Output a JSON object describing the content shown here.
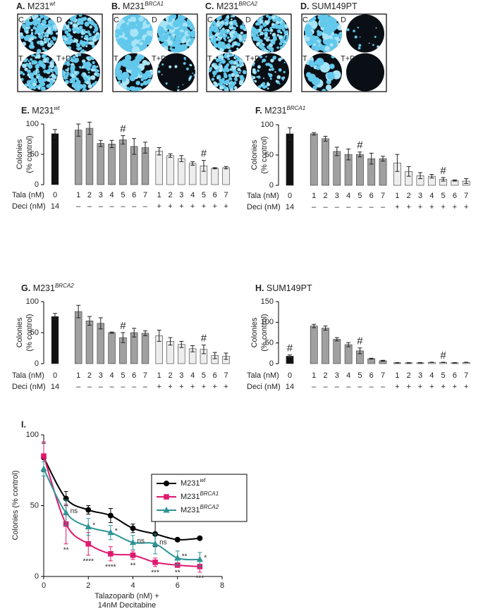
{
  "plates": [
    {
      "letter": "A.",
      "name": "M231",
      "sup": "wt",
      "quadrants": [
        "C",
        "D",
        "T",
        "T+D"
      ]
    },
    {
      "letter": "B.",
      "name": "M231",
      "sup": "BRCA1",
      "quadrants": [
        "C",
        "D",
        "T",
        "T+D"
      ]
    },
    {
      "letter": "C.",
      "name": "M231",
      "sup": "BRCA2",
      "quadrants": [
        "C",
        "D",
        "T",
        "T+D"
      ]
    },
    {
      "letter": "D.",
      "name": "SUM149PT",
      "quadrants": [
        "C",
        "D",
        "T",
        "T+D"
      ]
    }
  ],
  "chart_data": [
    {
      "type": "bar",
      "letter": "E.",
      "title": "M231",
      "title_sup": "wt",
      "ylabel": [
        "Colonies",
        "(% control)"
      ],
      "ylim": [
        0,
        100
      ],
      "yticks": [
        0,
        50,
        100
      ],
      "row_labels": [
        "Tala (nM)",
        "Deci (nM)"
      ],
      "categories": [
        "0",
        "1",
        "2",
        "3",
        "4",
        "5",
        "6",
        "7",
        "1",
        "2",
        "3",
        "4",
        "5",
        "6",
        "7"
      ],
      "deci": [
        "14",
        "–",
        "–",
        "–",
        "–",
        "–",
        "–",
        "–",
        "+",
        "+",
        "+",
        "+",
        "+",
        "+",
        "+"
      ],
      "colors": [
        "#111111",
        "#a0a0a0",
        "#a0a0a0",
        "#a0a0a0",
        "#a0a0a0",
        "#a0a0a0",
        "#a0a0a0",
        "#a0a0a0",
        "#ededed",
        "#ededed",
        "#ededed",
        "#ededed",
        "#ededed",
        "#ededed",
        "#ededed"
      ],
      "values": [
        84,
        90,
        93,
        68,
        67,
        74,
        63,
        61,
        55,
        48,
        43,
        35,
        31,
        27,
        28
      ],
      "errors": [
        7,
        10,
        10,
        5,
        6,
        7,
        13,
        9,
        6,
        3,
        5,
        3,
        9,
        1,
        2
      ],
      "annotations": [
        null,
        null,
        null,
        null,
        null,
        "#",
        null,
        null,
        null,
        null,
        null,
        null,
        "#",
        null,
        null
      ]
    },
    {
      "type": "bar",
      "letter": "F.",
      "title": "M231",
      "title_sup": "BRCA1",
      "ylabel": [
        "Colonies",
        "(% control)"
      ],
      "ylim": [
        0,
        100
      ],
      "yticks": [
        0,
        50,
        100
      ],
      "row_labels": [
        "Tala (nM)",
        "Deci (nM)"
      ],
      "categories": [
        "0",
        "1",
        "2",
        "3",
        "4",
        "5",
        "6",
        "7",
        "1",
        "2",
        "3",
        "4",
        "5",
        "6",
        "7"
      ],
      "deci": [
        "14",
        "–",
        "–",
        "–",
        "–",
        "–",
        "–",
        "–",
        "+",
        "+",
        "+",
        "+",
        "+",
        "+",
        "+"
      ],
      "colors": [
        "#111111",
        "#a0a0a0",
        "#a0a0a0",
        "#a0a0a0",
        "#a0a0a0",
        "#a0a0a0",
        "#a0a0a0",
        "#a0a0a0",
        "#ededed",
        "#ededed",
        "#ededed",
        "#ededed",
        "#ededed",
        "#ededed",
        "#ededed"
      ],
      "values": [
        85,
        85,
        77,
        56,
        51,
        51,
        44,
        44,
        37,
        23,
        16,
        15,
        10,
        8,
        7
      ],
      "errors": [
        10,
        2,
        4,
        7,
        9,
        4,
        9,
        4,
        14,
        8,
        5,
        3,
        3,
        1,
        4
      ],
      "annotations": [
        null,
        null,
        null,
        null,
        null,
        "#",
        null,
        null,
        null,
        null,
        null,
        null,
        "#",
        null,
        null
      ]
    },
    {
      "type": "bar",
      "letter": "G.",
      "title": "M231",
      "title_sup": "BRCA2",
      "ylabel": [
        "Colonies",
        "(% control)"
      ],
      "ylim": [
        0,
        100
      ],
      "yticks": [
        0,
        50,
        100
      ],
      "row_labels": [
        "Tala (nM)",
        "Deci (nM)"
      ],
      "categories": [
        "0",
        "1",
        "2",
        "3",
        "4",
        "5",
        "6",
        "7",
        "1",
        "2",
        "3",
        "4",
        "5",
        "6",
        "7"
      ],
      "deci": [
        "14",
        "–",
        "–",
        "–",
        "–",
        "–",
        "–",
        "–",
        "+",
        "+",
        "+",
        "+",
        "+",
        "+",
        "+"
      ],
      "colors": [
        "#111111",
        "#a0a0a0",
        "#a0a0a0",
        "#a0a0a0",
        "#a0a0a0",
        "#a0a0a0",
        "#a0a0a0",
        "#a0a0a0",
        "#ededed",
        "#ededed",
        "#ededed",
        "#ededed",
        "#ededed",
        "#ededed",
        "#ededed"
      ],
      "values": [
        76,
        84,
        69,
        65,
        50,
        42,
        50,
        49,
        45,
        36,
        31,
        24,
        23,
        13,
        12
      ],
      "errors": [
        5,
        10,
        7,
        9,
        1,
        8,
        7,
        4,
        9,
        6,
        5,
        5,
        7,
        5,
        5
      ],
      "annotations": [
        null,
        null,
        null,
        null,
        null,
        "#",
        null,
        null,
        null,
        null,
        null,
        null,
        "#",
        null,
        null
      ]
    },
    {
      "type": "bar",
      "letter": "H.",
      "title": "SUM149PT",
      "ylabel": [
        "Colonies",
        "(% control)"
      ],
      "ylim": [
        0,
        150
      ],
      "yticks": [
        0,
        50,
        100,
        150
      ],
      "row_labels": [
        "Tala (nM)",
        "Deci (nM)"
      ],
      "categories": [
        "0",
        "1",
        "2",
        "3",
        "4",
        "5",
        "6",
        "7",
        "1",
        "2",
        "3",
        "4",
        "5",
        "6",
        "7"
      ],
      "deci": [
        "14",
        "–",
        "–",
        "–",
        "–",
        "–",
        "–",
        "–",
        "+",
        "+",
        "+",
        "+",
        "+",
        "+",
        "+"
      ],
      "colors": [
        "#111111",
        "#a0a0a0",
        "#a0a0a0",
        "#a0a0a0",
        "#a0a0a0",
        "#a0a0a0",
        "#a0a0a0",
        "#a0a0a0",
        "#ededed",
        "#ededed",
        "#ededed",
        "#ededed",
        "#ededed",
        "#ededed",
        "#ededed"
      ],
      "values": [
        18,
        91,
        86,
        59,
        46,
        31,
        12,
        7,
        2,
        2,
        2,
        3,
        3,
        2,
        3
      ],
      "errors": [
        3,
        4,
        5,
        4,
        5,
        7,
        1,
        1,
        0.5,
        0.5,
        0.5,
        0.5,
        0.5,
        0.5,
        0.5
      ],
      "annotations": [
        "#",
        null,
        null,
        null,
        null,
        "#",
        null,
        null,
        null,
        null,
        null,
        null,
        "#",
        null,
        null
      ]
    },
    {
      "type": "line",
      "letter": "I.",
      "ylabel": "Colonies (% control)",
      "xlabel": [
        "Talazoparib (nM) +",
        "14nM Decitabine"
      ],
      "x": [
        0,
        1,
        2,
        3,
        4,
        5,
        6,
        7
      ],
      "xlim": [
        0,
        8
      ],
      "xticks": [
        0,
        2,
        4,
        6,
        8
      ],
      "ylim": [
        0,
        100
      ],
      "yticks": [
        0,
        50,
        100
      ],
      "series": [
        {
          "name": "M231",
          "sup": "wt",
          "color": "#000000",
          "marker": "circle",
          "values": [
            84,
            55,
            47,
            43,
            34,
            30,
            26,
            27
          ],
          "errors": [
            10,
            5,
            3,
            5,
            3,
            9,
            0,
            1
          ]
        },
        {
          "name": "M231",
          "sup": "BRCA1",
          "color": "#e0196e",
          "marker": "square",
          "values": [
            85,
            37,
            23,
            16,
            15,
            10,
            8,
            7
          ],
          "errors": [
            10,
            14,
            8,
            5,
            3,
            3,
            1,
            4
          ],
          "annotations": [
            null,
            "**",
            "****",
            "****",
            "**",
            "***",
            "**",
            "***"
          ]
        },
        {
          "name": "M231",
          "sup": "BRCA2",
          "color": "#2e9494",
          "marker": "triangle",
          "values": [
            76,
            45,
            35,
            31,
            24,
            23,
            13,
            12
          ],
          "errors": [
            5,
            9,
            6,
            5,
            5,
            7,
            5,
            5
          ],
          "annotations": [
            null,
            "ns",
            "*",
            "*",
            "ns",
            "ns",
            "**",
            "*"
          ]
        }
      ]
    }
  ]
}
